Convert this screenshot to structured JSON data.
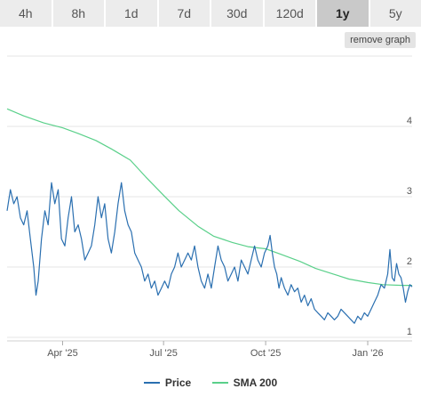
{
  "ranges": {
    "items": [
      {
        "label": "4h"
      },
      {
        "label": "8h"
      },
      {
        "label": "1d"
      },
      {
        "label": "7d"
      },
      {
        "label": "30d"
      },
      {
        "label": "120d"
      },
      {
        "label": "1y"
      },
      {
        "label": "5y"
      }
    ],
    "active_index": 6
  },
  "toolbar": {
    "remove_graph_label": "remove graph"
  },
  "legend": {
    "price_label": "Price",
    "price_color": "#2a6fb0",
    "sma_label": "SMA 200",
    "sma_color": "#5ad08a"
  },
  "chart_data": {
    "type": "line",
    "title": "",
    "xlabel": "",
    "ylabel": "",
    "x_ticks": [
      {
        "label": "Apr '25",
        "date": "2025-04-01"
      },
      {
        "label": "Jul '25",
        "date": "2025-07-01"
      },
      {
        "label": "Oct '25",
        "date": "2025-10-01"
      },
      {
        "label": "Jan '26",
        "date": "2026-01-01"
      }
    ],
    "y_ticks": [
      1,
      2,
      3,
      4
    ],
    "xlim": [
      "2025-02-10",
      "2026-02-10"
    ],
    "ylim": [
      0.95,
      5.0
    ],
    "grid": "horizontal",
    "legend_position": "bottom",
    "series": [
      {
        "name": "Price",
        "color": "#2a6fb0",
        "points": [
          [
            "2025-02-10",
            2.8
          ],
          [
            "2025-02-13",
            3.1
          ],
          [
            "2025-02-16",
            2.9
          ],
          [
            "2025-02-19",
            3.0
          ],
          [
            "2025-02-22",
            2.7
          ],
          [
            "2025-02-25",
            2.6
          ],
          [
            "2025-02-28",
            2.8
          ],
          [
            "2025-03-03",
            2.4
          ],
          [
            "2025-03-06",
            2.0
          ],
          [
            "2025-03-08",
            1.6
          ],
          [
            "2025-03-10",
            1.8
          ],
          [
            "2025-03-13",
            2.4
          ],
          [
            "2025-03-16",
            2.8
          ],
          [
            "2025-03-19",
            2.6
          ],
          [
            "2025-03-22",
            3.2
          ],
          [
            "2025-03-25",
            2.9
          ],
          [
            "2025-03-28",
            3.1
          ],
          [
            "2025-03-31",
            2.4
          ],
          [
            "2025-04-03",
            2.3
          ],
          [
            "2025-04-06",
            2.7
          ],
          [
            "2025-04-09",
            3.0
          ],
          [
            "2025-04-12",
            2.5
          ],
          [
            "2025-04-15",
            2.6
          ],
          [
            "2025-04-18",
            2.4
          ],
          [
            "2025-04-21",
            2.1
          ],
          [
            "2025-04-24",
            2.2
          ],
          [
            "2025-04-27",
            2.3
          ],
          [
            "2025-04-30",
            2.6
          ],
          [
            "2025-05-03",
            3.0
          ],
          [
            "2025-05-06",
            2.7
          ],
          [
            "2025-05-09",
            2.9
          ],
          [
            "2025-05-12",
            2.4
          ],
          [
            "2025-05-15",
            2.2
          ],
          [
            "2025-05-18",
            2.5
          ],
          [
            "2025-05-21",
            2.9
          ],
          [
            "2025-05-24",
            3.2
          ],
          [
            "2025-05-27",
            2.8
          ],
          [
            "2025-05-30",
            2.6
          ],
          [
            "2025-06-02",
            2.5
          ],
          [
            "2025-06-05",
            2.2
          ],
          [
            "2025-06-08",
            2.1
          ],
          [
            "2025-06-11",
            2.0
          ],
          [
            "2025-06-14",
            1.8
          ],
          [
            "2025-06-17",
            1.9
          ],
          [
            "2025-06-20",
            1.7
          ],
          [
            "2025-06-23",
            1.8
          ],
          [
            "2025-06-26",
            1.6
          ],
          [
            "2025-06-29",
            1.7
          ],
          [
            "2025-07-02",
            1.8
          ],
          [
            "2025-07-05",
            1.7
          ],
          [
            "2025-07-08",
            1.9
          ],
          [
            "2025-07-11",
            2.0
          ],
          [
            "2025-07-14",
            2.2
          ],
          [
            "2025-07-17",
            2.0
          ],
          [
            "2025-07-20",
            2.1
          ],
          [
            "2025-07-23",
            2.2
          ],
          [
            "2025-07-26",
            2.1
          ],
          [
            "2025-07-29",
            2.3
          ],
          [
            "2025-08-01",
            2.0
          ],
          [
            "2025-08-04",
            1.8
          ],
          [
            "2025-08-07",
            1.7
          ],
          [
            "2025-08-10",
            1.9
          ],
          [
            "2025-08-13",
            1.7
          ],
          [
            "2025-08-16",
            2.0
          ],
          [
            "2025-08-19",
            2.3
          ],
          [
            "2025-08-22",
            2.1
          ],
          [
            "2025-08-25",
            2.0
          ],
          [
            "2025-08-28",
            1.8
          ],
          [
            "2025-08-31",
            1.9
          ],
          [
            "2025-09-03",
            2.0
          ],
          [
            "2025-09-06",
            1.8
          ],
          [
            "2025-09-09",
            2.1
          ],
          [
            "2025-09-12",
            2.0
          ],
          [
            "2025-09-15",
            1.9
          ],
          [
            "2025-09-18",
            2.1
          ],
          [
            "2025-09-21",
            2.3
          ],
          [
            "2025-09-24",
            2.1
          ],
          [
            "2025-09-27",
            2.0
          ],
          [
            "2025-09-30",
            2.2
          ],
          [
            "2025-10-03",
            2.3
          ],
          [
            "2025-10-05",
            2.45
          ],
          [
            "2025-10-07",
            2.2
          ],
          [
            "2025-10-09",
            2.0
          ],
          [
            "2025-10-11",
            1.9
          ],
          [
            "2025-10-13",
            1.7
          ],
          [
            "2025-10-15",
            1.85
          ],
          [
            "2025-10-18",
            1.7
          ],
          [
            "2025-10-21",
            1.6
          ],
          [
            "2025-10-24",
            1.75
          ],
          [
            "2025-10-27",
            1.65
          ],
          [
            "2025-10-30",
            1.7
          ],
          [
            "2025-11-02",
            1.5
          ],
          [
            "2025-11-05",
            1.6
          ],
          [
            "2025-11-08",
            1.45
          ],
          [
            "2025-11-11",
            1.55
          ],
          [
            "2025-11-14",
            1.4
          ],
          [
            "2025-11-17",
            1.35
          ],
          [
            "2025-11-20",
            1.3
          ],
          [
            "2025-11-23",
            1.25
          ],
          [
            "2025-11-26",
            1.35
          ],
          [
            "2025-11-29",
            1.3
          ],
          [
            "2025-12-02",
            1.25
          ],
          [
            "2025-12-05",
            1.3
          ],
          [
            "2025-12-08",
            1.4
          ],
          [
            "2025-12-11",
            1.35
          ],
          [
            "2025-12-14",
            1.3
          ],
          [
            "2025-12-17",
            1.25
          ],
          [
            "2025-12-20",
            1.2
          ],
          [
            "2025-12-23",
            1.3
          ],
          [
            "2025-12-26",
            1.25
          ],
          [
            "2025-12-29",
            1.35
          ],
          [
            "2026-01-01",
            1.3
          ],
          [
            "2026-01-04",
            1.4
          ],
          [
            "2026-01-07",
            1.5
          ],
          [
            "2026-01-10",
            1.6
          ],
          [
            "2026-01-13",
            1.75
          ],
          [
            "2026-01-16",
            1.7
          ],
          [
            "2026-01-19",
            1.9
          ],
          [
            "2026-01-21",
            2.25
          ],
          [
            "2026-01-23",
            1.85
          ],
          [
            "2026-01-25",
            1.8
          ],
          [
            "2026-01-27",
            2.05
          ],
          [
            "2026-01-29",
            1.9
          ],
          [
            "2026-01-31",
            1.85
          ],
          [
            "2026-02-02",
            1.7
          ],
          [
            "2026-02-04",
            1.5
          ],
          [
            "2026-02-06",
            1.65
          ],
          [
            "2026-02-08",
            1.75
          ],
          [
            "2026-02-10",
            1.72
          ]
        ]
      },
      {
        "name": "SMA 200",
        "color": "#5ad08a",
        "points": [
          [
            "2025-02-10",
            4.25
          ],
          [
            "2025-02-25",
            4.15
          ],
          [
            "2025-03-15",
            4.05
          ],
          [
            "2025-04-01",
            3.98
          ],
          [
            "2025-04-15",
            3.9
          ],
          [
            "2025-05-01",
            3.8
          ],
          [
            "2025-05-15",
            3.68
          ],
          [
            "2025-06-01",
            3.52
          ],
          [
            "2025-06-15",
            3.28
          ],
          [
            "2025-07-01",
            3.02
          ],
          [
            "2025-07-15",
            2.8
          ],
          [
            "2025-08-01",
            2.58
          ],
          [
            "2025-08-15",
            2.44
          ],
          [
            "2025-09-01",
            2.35
          ],
          [
            "2025-09-15",
            2.29
          ],
          [
            "2025-10-01",
            2.26
          ],
          [
            "2025-10-15",
            2.18
          ],
          [
            "2025-11-01",
            2.08
          ],
          [
            "2025-11-15",
            1.98
          ],
          [
            "2025-12-01",
            1.9
          ],
          [
            "2025-12-15",
            1.83
          ],
          [
            "2026-01-01",
            1.78
          ],
          [
            "2026-01-15",
            1.75
          ],
          [
            "2026-02-01",
            1.74
          ],
          [
            "2026-02-10",
            1.74
          ]
        ]
      }
    ]
  }
}
